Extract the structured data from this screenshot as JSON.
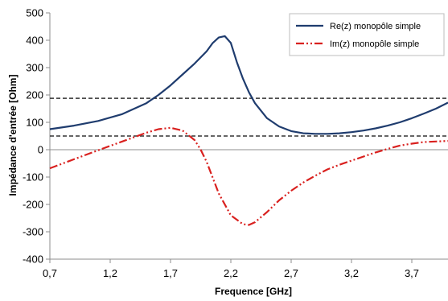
{
  "chart_data": {
    "type": "line",
    "title": "",
    "xlabel": "Frequence [GHz]",
    "ylabel": "Impédance d'entrée [Ohm]",
    "xlim": [
      0.7,
      4.0
    ],
    "ylim": [
      -400,
      500
    ],
    "x_tick_labels": [
      "0,7",
      "1,2",
      "1,7",
      "2,2",
      "2,7",
      "3,2",
      "3,7"
    ],
    "x_ticks": [
      0.7,
      1.2,
      1.7,
      2.2,
      2.7,
      3.2,
      3.7
    ],
    "y_tick_labels": [
      "500",
      "400",
      "300",
      "200",
      "100",
      "0",
      "-100",
      "-200",
      "-300",
      "-400"
    ],
    "y_ticks": [
      500,
      400,
      300,
      200,
      100,
      0,
      -100,
      -200,
      -300,
      -400
    ],
    "grid": false,
    "legend_position": "top-right",
    "series": [
      {
        "name": "Re(z) monopôle simple",
        "color": "#1f3c6e",
        "style": "solid",
        "x": [
          0.7,
          0.9,
          1.1,
          1.3,
          1.5,
          1.6,
          1.7,
          1.8,
          1.9,
          2.0,
          2.05,
          2.1,
          2.15,
          2.2,
          2.25,
          2.3,
          2.35,
          2.4,
          2.5,
          2.6,
          2.7,
          2.8,
          2.9,
          3.0,
          3.1,
          3.2,
          3.3,
          3.4,
          3.5,
          3.6,
          3.7,
          3.8,
          3.9,
          4.0
        ],
        "y": [
          75,
          88,
          105,
          130,
          170,
          200,
          235,
          275,
          315,
          360,
          390,
          410,
          415,
          390,
          320,
          260,
          210,
          170,
          115,
          85,
          68,
          60,
          58,
          58,
          60,
          64,
          70,
          78,
          88,
          100,
          115,
          132,
          150,
          172
        ]
      },
      {
        "name": "Im(z) monopôle simple",
        "color": "#d9211f",
        "style": "dash-dot-dot",
        "x": [
          0.7,
          0.9,
          1.1,
          1.3,
          1.5,
          1.6,
          1.7,
          1.8,
          1.9,
          1.95,
          2.0,
          2.1,
          2.2,
          2.3,
          2.35,
          2.4,
          2.5,
          2.6,
          2.7,
          2.8,
          2.9,
          3.0,
          3.1,
          3.2,
          3.3,
          3.4,
          3.5,
          3.6,
          3.7,
          3.8,
          3.9,
          4.0
        ],
        "y": [
          -68,
          -35,
          -2,
          30,
          62,
          75,
          80,
          70,
          35,
          0,
          -45,
          -160,
          -240,
          -272,
          -275,
          -265,
          -228,
          -185,
          -150,
          -120,
          -95,
          -72,
          -55,
          -40,
          -25,
          -10,
          3,
          15,
          22,
          28,
          30,
          32
        ]
      },
      {
        "name": "",
        "color": "#333333",
        "style": "dashed",
        "x": [
          0.7,
          4.0
        ],
        "y": [
          188,
          188
        ]
      },
      {
        "name": "",
        "color": "#333333",
        "style": "dashed",
        "x": [
          0.7,
          4.0
        ],
        "y": [
          50,
          50
        ]
      }
    ]
  },
  "legend": {
    "items": [
      {
        "label": "Re(z) monopôle simple",
        "color": "#1f3c6e",
        "style": "solid"
      },
      {
        "label": "Im(z) monopôle simple",
        "color": "#d9211f",
        "style": "dash-dot-dot"
      }
    ]
  }
}
